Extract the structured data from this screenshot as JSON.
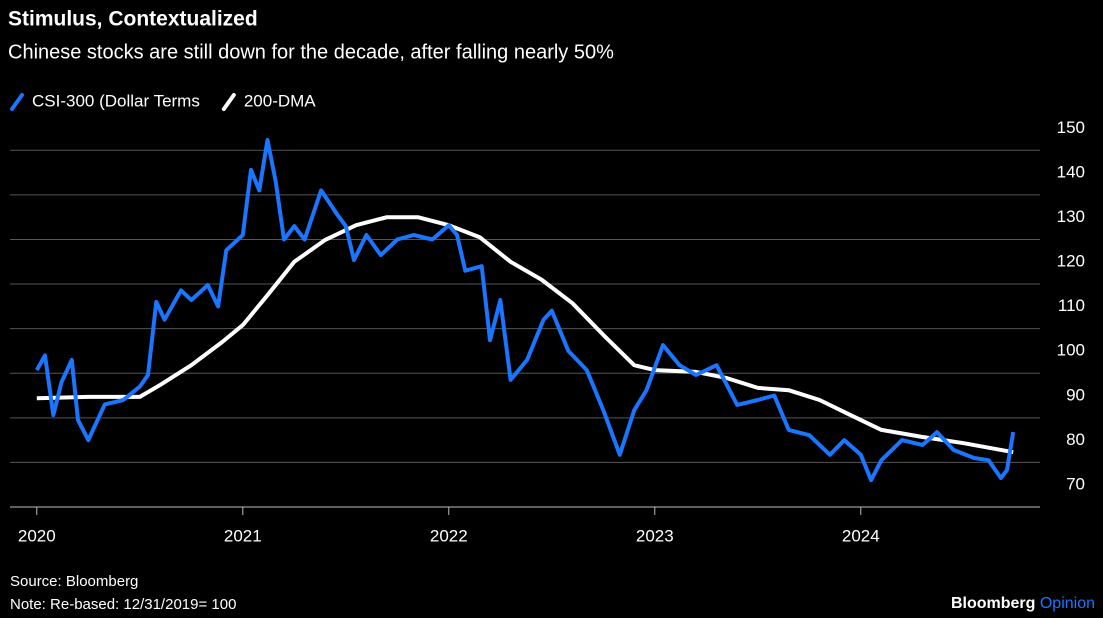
{
  "chart_data": {
    "type": "line",
    "title": "Stimulus, Contextualized",
    "subtitle": "Chinese stocks are still down for the decade, after falling nearly 50%",
    "source": "Source: Bloomberg",
    "note": "Note: Re-based: 12/31/2019= 100",
    "brand": [
      "Bloomberg",
      "Opinion"
    ],
    "xlim": [
      2019.87,
      2024.87
    ],
    "xticks": [
      2020,
      2021,
      2022,
      2023,
      2024
    ],
    "ylim": [
      70,
      155
    ],
    "yticks": [
      70,
      80,
      90,
      100,
      110,
      120,
      130,
      140,
      150
    ],
    "grid": true,
    "series": [
      {
        "name": "CSI-300 (Dollar Terms",
        "color": "#1a75ff",
        "x": [
          2020.0,
          2020.04,
          2020.08,
          2020.12,
          2020.17,
          2020.2,
          2020.25,
          2020.33,
          2020.42,
          2020.5,
          2020.54,
          2020.58,
          2020.62,
          2020.7,
          2020.75,
          2020.83,
          2020.88,
          2020.92,
          2021.0,
          2021.04,
          2021.08,
          2021.12,
          2021.16,
          2021.2,
          2021.25,
          2021.3,
          2021.38,
          2021.46,
          2021.5,
          2021.54,
          2021.6,
          2021.67,
          2021.75,
          2021.83,
          2021.92,
          2022.0,
          2022.04,
          2022.08,
          2022.16,
          2022.2,
          2022.25,
          2022.3,
          2022.38,
          2022.46,
          2022.5,
          2022.58,
          2022.67,
          2022.75,
          2022.83,
          2022.9,
          2022.96,
          2023.04,
          2023.12,
          2023.2,
          2023.3,
          2023.4,
          2023.5,
          2023.58,
          2023.65,
          2023.75,
          2023.85,
          2023.92,
          2024.0,
          2024.05,
          2024.1,
          2024.2,
          2024.3,
          2024.37,
          2024.45,
          2024.55,
          2024.62,
          2024.68,
          2024.71,
          2024.74
        ],
        "values": [
          100.7,
          104,
          90.6,
          98,
          103,
          89.5,
          85,
          93,
          94,
          97,
          99.6,
          116,
          112,
          118.6,
          116.4,
          119.8,
          115,
          127.6,
          131,
          145.6,
          141,
          152.3,
          143,
          130,
          133,
          130,
          141,
          135.5,
          133,
          125.4,
          131,
          126.5,
          130,
          131,
          130,
          133.2,
          131,
          123,
          124,
          107.4,
          116.4,
          98.5,
          103,
          112,
          114,
          105,
          100.7,
          91.7,
          81.7,
          91.7,
          96.2,
          106.3,
          101.8,
          99.6,
          101.8,
          92.9,
          94,
          95,
          87.3,
          86.1,
          81.7,
          85,
          81.7,
          76,
          80.5,
          85,
          83.9,
          86.8,
          82.8,
          81,
          80.5,
          76.5,
          78.3,
          86.8
        ]
      },
      {
        "name": "200-DMA",
        "color": "#ffffff",
        "x": [
          2020.0,
          2020.25,
          2020.5,
          2020.6,
          2020.75,
          2020.9,
          2021.0,
          2021.12,
          2021.25,
          2021.4,
          2021.55,
          2021.7,
          2021.85,
          2022.0,
          2022.15,
          2022.3,
          2022.45,
          2022.6,
          2022.75,
          2022.9,
          2023.0,
          2023.2,
          2023.35,
          2023.5,
          2023.65,
          2023.8,
          2023.95,
          2024.1,
          2024.3,
          2024.5,
          2024.74
        ],
        "values": [
          94.4,
          94.7,
          94.7,
          97.4,
          101.8,
          107,
          110.8,
          117.5,
          125,
          129.9,
          133.2,
          135,
          135,
          133.2,
          130.5,
          125,
          121,
          115.7,
          108.6,
          101.8,
          100.7,
          100.3,
          98.9,
          96.7,
          96.2,
          94,
          90.6,
          87.3,
          85.7,
          84.3,
          82.3
        ]
      }
    ]
  }
}
